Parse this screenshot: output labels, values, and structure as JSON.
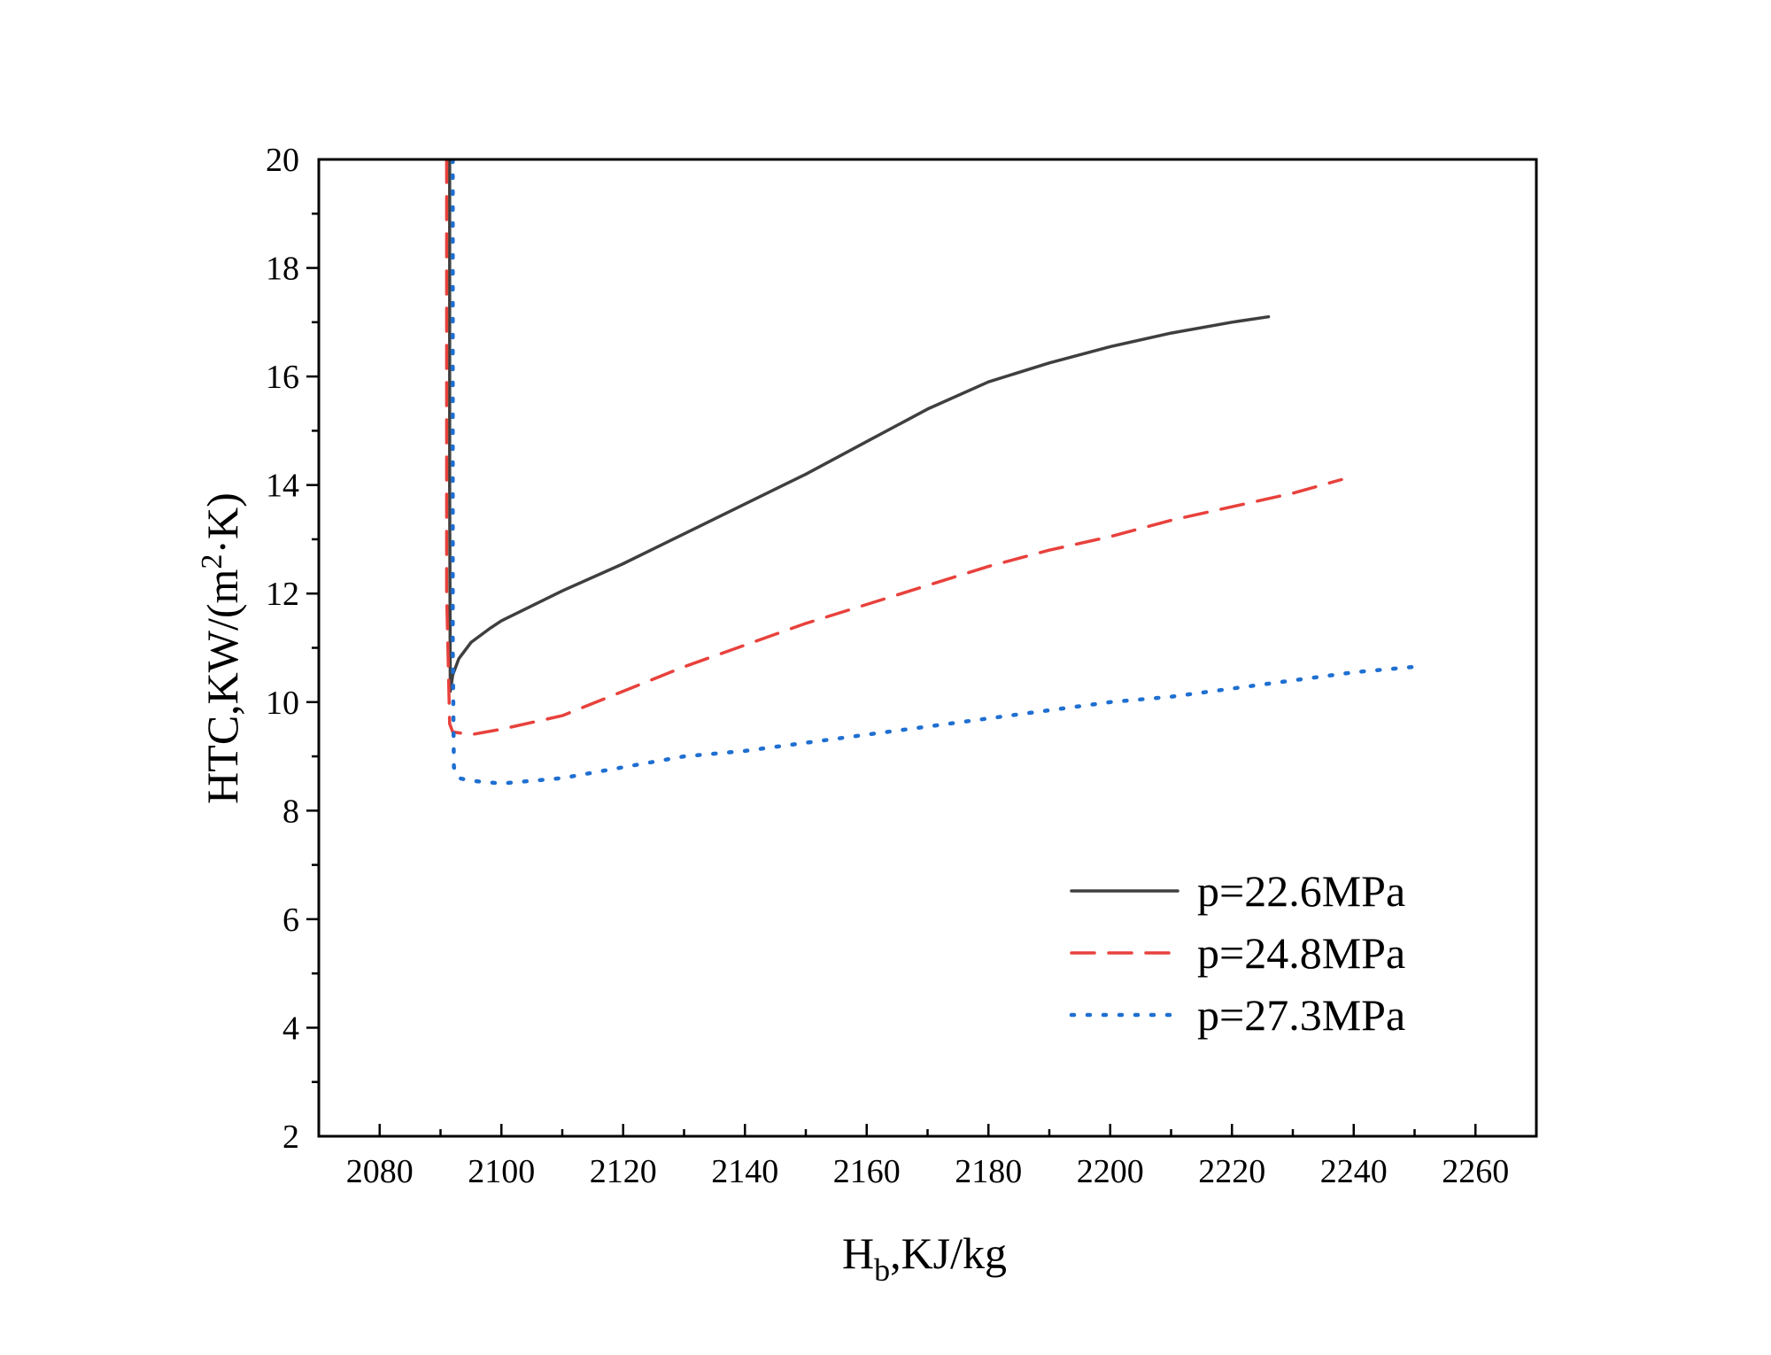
{
  "chart_data": {
    "type": "line",
    "title": "",
    "xlabel_main": "H",
    "xlabel_sub": "b",
    "xlabel_rest": ",KJ/kg",
    "ylabel_main": "HTC,KW/(m",
    "ylabel_sup": "2",
    "ylabel_rest": "·K)",
    "xlim": [
      2070,
      2270
    ],
    "ylim": [
      2,
      20
    ],
    "xticks": [
      2080,
      2100,
      2120,
      2140,
      2160,
      2180,
      2200,
      2220,
      2240,
      2260
    ],
    "yticks": [
      2,
      4,
      6,
      8,
      10,
      12,
      14,
      16,
      18,
      20
    ],
    "grid": false,
    "legend_position": "bottom-right",
    "series": [
      {
        "name": "p=22.6MPa",
        "color": "#3f3f3f",
        "style": "solid",
        "x": [
          2091.5,
          2091.5,
          2091.6,
          2092.0,
          2093.0,
          2095.0,
          2098.0,
          2100.0,
          2110.0,
          2120.0,
          2130.0,
          2140.0,
          2150.0,
          2160.0,
          2170.0,
          2180.0,
          2190.0,
          2200.0,
          2210.0,
          2220.0,
          2226.0
        ],
        "y": [
          20.0,
          14.0,
          10.2,
          10.5,
          10.8,
          11.1,
          11.35,
          11.5,
          12.05,
          12.55,
          13.1,
          13.65,
          14.2,
          14.8,
          15.4,
          15.9,
          16.25,
          16.55,
          16.8,
          17.0,
          17.1
        ]
      },
      {
        "name": "p=24.8MPa",
        "color": "#e8413c",
        "style": "dashed",
        "x": [
          2091.0,
          2091.0,
          2091.5,
          2092.0,
          2095.0,
          2100.0,
          2110.0,
          2120.0,
          2130.0,
          2140.0,
          2150.0,
          2160.0,
          2170.0,
          2180.0,
          2190.0,
          2200.0,
          2210.0,
          2220.0,
          2230.0,
          2238.0
        ],
        "y": [
          20.0,
          12.0,
          9.6,
          9.45,
          9.4,
          9.5,
          9.75,
          10.2,
          10.65,
          11.05,
          11.45,
          11.8,
          12.15,
          12.5,
          12.8,
          13.05,
          13.35,
          13.6,
          13.85,
          14.1
        ]
      },
      {
        "name": "p=27.3MPa",
        "color": "#1f6fd1",
        "style": "dotted",
        "x": [
          2092.0,
          2092.0,
          2092.2,
          2093.0,
          2095.0,
          2100.0,
          2110.0,
          2120.0,
          2130.0,
          2140.0,
          2150.0,
          2160.0,
          2170.0,
          2180.0,
          2190.0,
          2200.0,
          2210.0,
          2220.0,
          2230.0,
          2240.0,
          2250.0
        ],
        "y": [
          20.0,
          11.0,
          8.8,
          8.6,
          8.55,
          8.5,
          8.6,
          8.8,
          9.0,
          9.1,
          9.25,
          9.4,
          9.55,
          9.7,
          9.85,
          10.0,
          10.1,
          10.25,
          10.4,
          10.55,
          10.65
        ]
      }
    ]
  }
}
